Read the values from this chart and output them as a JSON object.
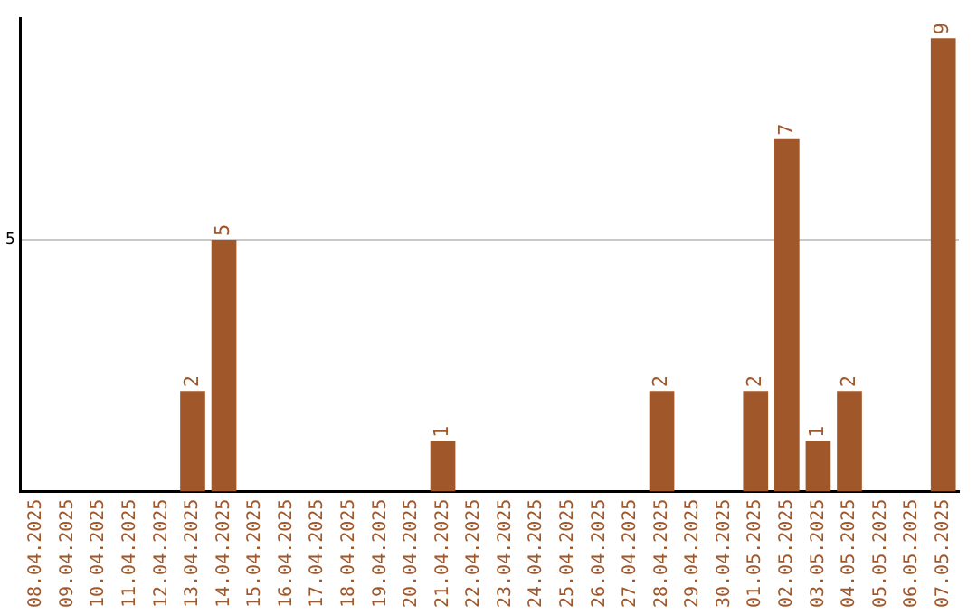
{
  "chart_data": {
    "type": "bar",
    "categories": [
      "08.04.2025",
      "09.04.2025",
      "10.04.2025",
      "11.04.2025",
      "12.04.2025",
      "13.04.2025",
      "14.04.2025",
      "15.04.2025",
      "16.04.2025",
      "17.04.2025",
      "18.04.2025",
      "19.04.2025",
      "20.04.2025",
      "21.04.2025",
      "22.04.2025",
      "23.04.2025",
      "24.04.2025",
      "25.04.2025",
      "26.04.2025",
      "27.04.2025",
      "28.04.2025",
      "29.04.2025",
      "30.04.2025",
      "01.05.2025",
      "02.05.2025",
      "03.05.2025",
      "04.05.2025",
      "05.05.2025",
      "06.05.2025",
      "07.05.2025"
    ],
    "values": [
      0,
      0,
      0,
      0,
      0,
      2,
      5,
      0,
      0,
      0,
      0,
      0,
      0,
      1,
      0,
      0,
      0,
      0,
      0,
      0,
      2,
      0,
      0,
      2,
      7,
      1,
      2,
      0,
      0,
      9
    ],
    "value_labels": [
      null,
      null,
      null,
      null,
      null,
      "2",
      "5",
      null,
      null,
      null,
      null,
      null,
      null,
      "1",
      null,
      null,
      null,
      null,
      null,
      null,
      "2",
      null,
      null,
      "2",
      "7",
      "1",
      "2",
      null,
      null,
      "9"
    ],
    "color": "#a0582a",
    "ylim": [
      0,
      9.4
    ],
    "yticks": [
      5
    ],
    "grid": "y",
    "legend": false
  }
}
